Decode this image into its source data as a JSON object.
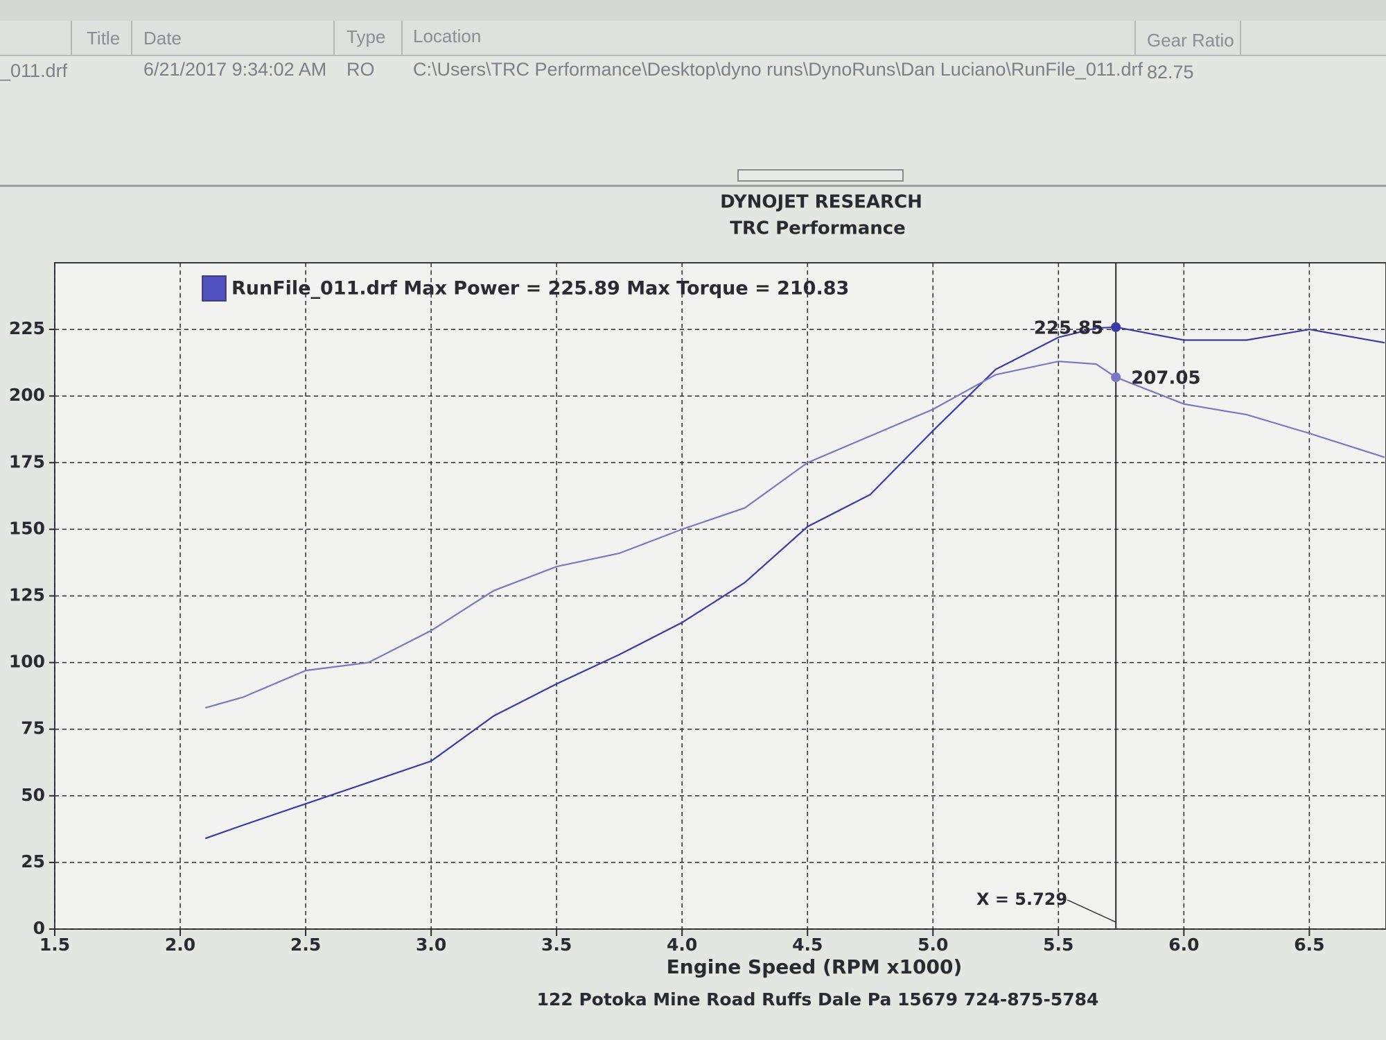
{
  "table": {
    "columns": [
      "Title",
      "Date",
      "Type",
      "Location",
      "Gear Ratio"
    ],
    "rows": [
      [
        "_011.drf",
        "6/21/2017 9:34:02 AM",
        "RO",
        "C:\\Users\\TRC Performance\\Desktop\\dyno runs\\DynoRuns\\Dan Luciano\\RunFile_011.drf",
        "82.75"
      ]
    ]
  },
  "chart_data": {
    "type": "line",
    "title": "DYNOJET RESEARCH",
    "subtitle": "TRC Performance",
    "legend": "RunFile_011.drf Max Power = 225.89 Max Torque = 210.83",
    "legend_color": "#5050c0",
    "x_label": "Engine Speed (RPM x1000)",
    "footer": "122 Potoka Mine Road Ruffs Dale Pa 15679 724-875-5784",
    "x": [
      2.1,
      2.25,
      2.5,
      2.75,
      3.0,
      3.25,
      3.5,
      3.75,
      4.0,
      4.25,
      4.5,
      4.75,
      5.0,
      5.25,
      5.5,
      5.65,
      5.729,
      6.0,
      6.25,
      6.5,
      6.8
    ],
    "series": [
      {
        "color": "#3a3aa8",
        "values": [
          34,
          39,
          47,
          55,
          63,
          80,
          92,
          103,
          115,
          130,
          151,
          163,
          187,
          210,
          222,
          225.5,
          225.85,
          221,
          221,
          225,
          220
        ]
      },
      {
        "color": "#7878c4",
        "values": [
          83,
          87,
          97,
          100,
          112,
          127,
          136,
          141,
          150,
          158,
          175,
          185,
          195,
          208,
          213,
          212,
          207.05,
          197,
          193,
          186,
          177
        ]
      }
    ],
    "cursor": {
      "x": 5.729,
      "label": "X = 5.729",
      "index": 16
    },
    "xlim": [
      1.5,
      6.8
    ],
    "ylim": [
      0,
      250
    ],
    "xticks": [
      1.5,
      {
        "value": 2,
        "label": "2.0"
      },
      2.5,
      {
        "value": 3,
        "label": "3.0"
      },
      3.5,
      {
        "value": 4,
        "label": "4.0"
      },
      4.5,
      {
        "value": 5,
        "label": "5.0"
      },
      5.5,
      {
        "value": 6,
        "label": "6.0"
      },
      6.5
    ],
    "yticks": [
      0,
      25,
      50,
      75,
      100,
      125,
      150,
      175,
      200,
      225
    ],
    "grid": true
  }
}
